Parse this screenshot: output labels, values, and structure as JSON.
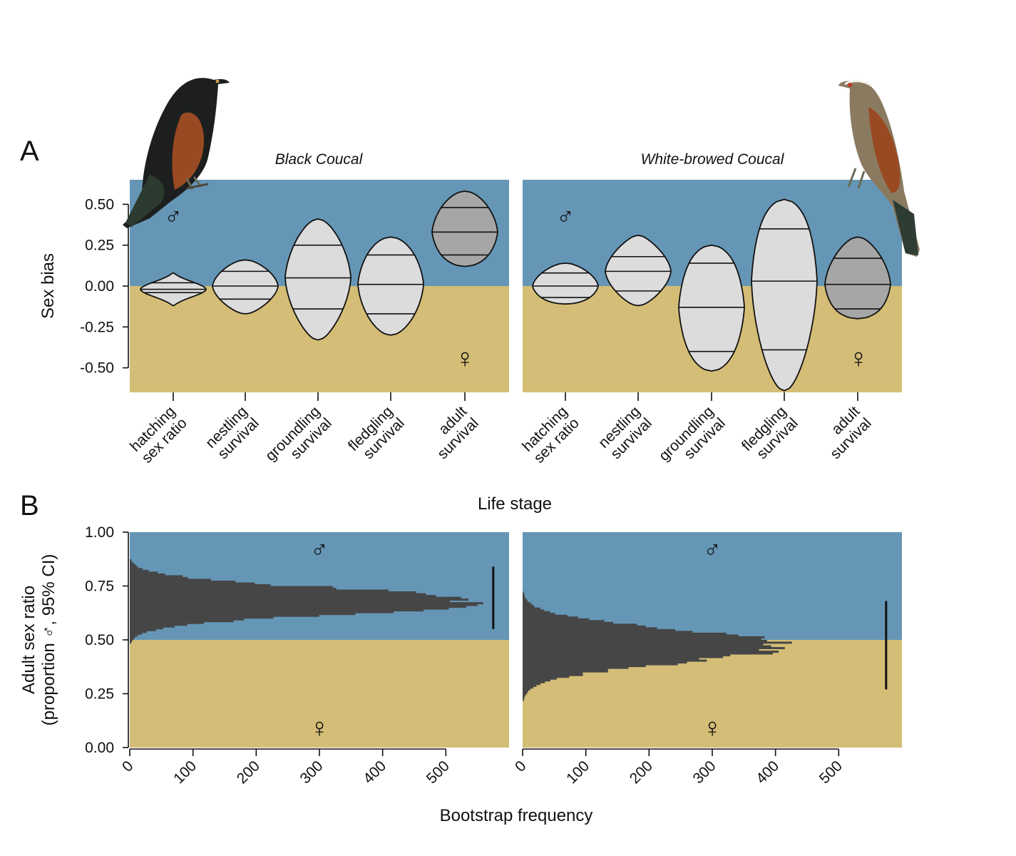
{
  "panel_letters": [
    "A",
    "B"
  ],
  "colors": {
    "male_bg": "#6596b6",
    "female_bg": "#d4bd76",
    "violin_light": "#dcdcdc",
    "violin_adult": "#a6a6a6",
    "histogram": "#464646",
    "axis": "#111111"
  },
  "symbols": {
    "male": "♂",
    "female": "♀"
  },
  "icons": [
    "black-coucal-bird-illustration",
    "white-browed-coucal-bird-illustration"
  ],
  "chart_data": [
    {
      "id": "A-black",
      "type": "violin",
      "title": "Black Coucal",
      "ylabel": "Sex bias",
      "xlabel": "Life stage",
      "ylim": [
        -0.65,
        0.65
      ],
      "yticks": [
        "0.50",
        "0.25",
        "0.00",
        "-0.25",
        "-0.50"
      ],
      "categories": [
        "hatching\nsex ratio",
        "nestling\nsurvival",
        "groundling\nsurvival",
        "fledgling\nsurvival",
        "adult\nsurvival"
      ],
      "violins": [
        {
          "min": -0.12,
          "q1": -0.04,
          "median": -0.02,
          "q3": 0.02,
          "max": 0.08
        },
        {
          "min": -0.17,
          "q1": -0.08,
          "median": 0.0,
          "q3": 0.09,
          "max": 0.16
        },
        {
          "min": -0.33,
          "q1": -0.14,
          "median": 0.05,
          "q3": 0.25,
          "max": 0.41
        },
        {
          "min": -0.3,
          "q1": -0.17,
          "median": 0.01,
          "q3": 0.19,
          "max": 0.3
        },
        {
          "min": 0.12,
          "q1": 0.19,
          "median": 0.33,
          "q3": 0.48,
          "max": 0.58
        }
      ]
    },
    {
      "id": "A-white",
      "type": "violin",
      "title": "White-browed Coucal",
      "ylim": [
        -0.65,
        0.65
      ],
      "categories": [
        "hatching\nsex ratio",
        "nestling\nsurvival",
        "groundling\nsurvival",
        "fledgling\nsurvival",
        "adult\nsurvival"
      ],
      "violins": [
        {
          "min": -0.11,
          "q1": -0.07,
          "median": 0.0,
          "q3": 0.08,
          "max": 0.14
        },
        {
          "min": -0.12,
          "q1": -0.03,
          "median": 0.09,
          "q3": 0.18,
          "max": 0.31
        },
        {
          "min": -0.52,
          "q1": -0.4,
          "median": -0.13,
          "q3": 0.14,
          "max": 0.25
        },
        {
          "min": -0.64,
          "q1": -0.39,
          "median": 0.03,
          "q3": 0.35,
          "max": 0.53
        },
        {
          "min": -0.2,
          "q1": -0.14,
          "median": 0.01,
          "q3": 0.17,
          "max": 0.3
        }
      ]
    },
    {
      "id": "B-black",
      "type": "histogram",
      "ylabel": "Adult sex ratio\n(proportion ♂, 95% CI)",
      "xlabel": "Bootstrap frequency",
      "xlim": [
        0,
        600
      ],
      "ylim": [
        0,
        1
      ],
      "xticks": [
        "0",
        "100",
        "200",
        "300",
        "400",
        "500"
      ],
      "yticks": [
        "1.00",
        "0.75",
        "0.50",
        "0.25",
        "0.00"
      ],
      "mean": 0.68,
      "sd": 0.058,
      "peak_frequency": 560,
      "ci": [
        0.55,
        0.84
      ]
    },
    {
      "id": "B-white",
      "type": "histogram",
      "xlim": [
        0,
        600
      ],
      "ylim": [
        0,
        1
      ],
      "xticks": [
        "0",
        "100",
        "200",
        "300",
        "400",
        "500"
      ],
      "mean": 0.47,
      "sd": 0.075,
      "peak_frequency": 415,
      "ci": [
        0.27,
        0.68
      ]
    }
  ]
}
